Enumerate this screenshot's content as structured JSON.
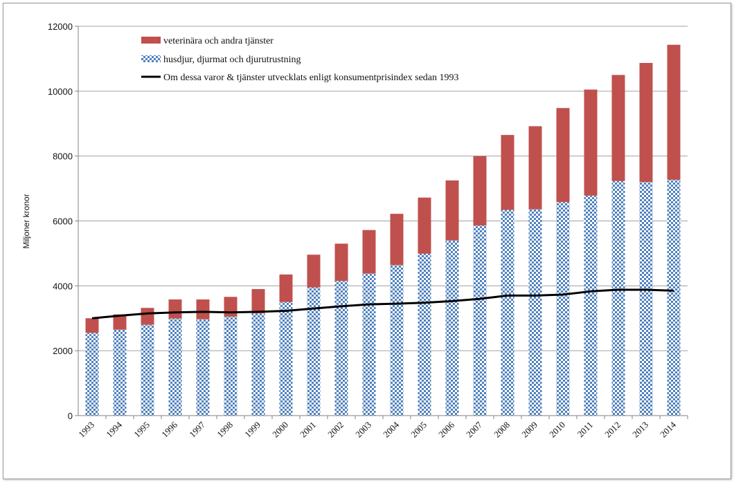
{
  "chart_data": {
    "type": "bar",
    "stacked": true,
    "title": "",
    "xlabel": "",
    "ylabel": "Miljoner kronor",
    "ylim": [
      0,
      12000
    ],
    "yticks": [
      "0",
      "2000",
      "4000",
      "6000",
      "8000",
      "10000",
      "12000"
    ],
    "grid": true,
    "legend_position": "top-left",
    "categories": [
      "1993",
      "1994",
      "1995",
      "1996",
      "1997",
      "1998",
      "1999",
      "2000",
      "2001",
      "2002",
      "2003",
      "2004",
      "2005",
      "2006",
      "2007",
      "2008",
      "2009",
      "2010",
      "2011",
      "2012",
      "2013",
      "2014"
    ],
    "series": [
      {
        "name": "husdjur, djurmat och djurutrustning",
        "type": "bar",
        "color": "#4f81bd",
        "values": [
          2550,
          2650,
          2800,
          2990,
          2970,
          3050,
          3150,
          3500,
          3950,
          4150,
          4380,
          4640,
          4990,
          5400,
          5860,
          6340,
          6360,
          6580,
          6780,
          7230,
          7200,
          7270
        ]
      },
      {
        "name": "veterinära och andra tjänster",
        "type": "bar",
        "color": "#c0504d",
        "values": [
          450,
          470,
          520,
          590,
          610,
          610,
          750,
          850,
          1010,
          1150,
          1340,
          1580,
          1730,
          1850,
          2140,
          2310,
          2560,
          2900,
          3270,
          3270,
          3670,
          4160
        ]
      },
      {
        "name": "Om dessa varor & tjänster utvecklats enligt konsumentprisindex sedan 1993",
        "type": "line",
        "color": "#000000",
        "values": [
          3000,
          3080,
          3150,
          3180,
          3200,
          3180,
          3200,
          3230,
          3300,
          3370,
          3430,
          3450,
          3480,
          3530,
          3600,
          3700,
          3700,
          3730,
          3830,
          3880,
          3880,
          3850
        ]
      }
    ],
    "legend": [
      "veterinära och andra tjänster",
      "husdjur, djurmat och djurutrustning",
      "Om dessa varor & tjänster utvecklats enligt konsumentprisindex sedan 1993"
    ]
  }
}
